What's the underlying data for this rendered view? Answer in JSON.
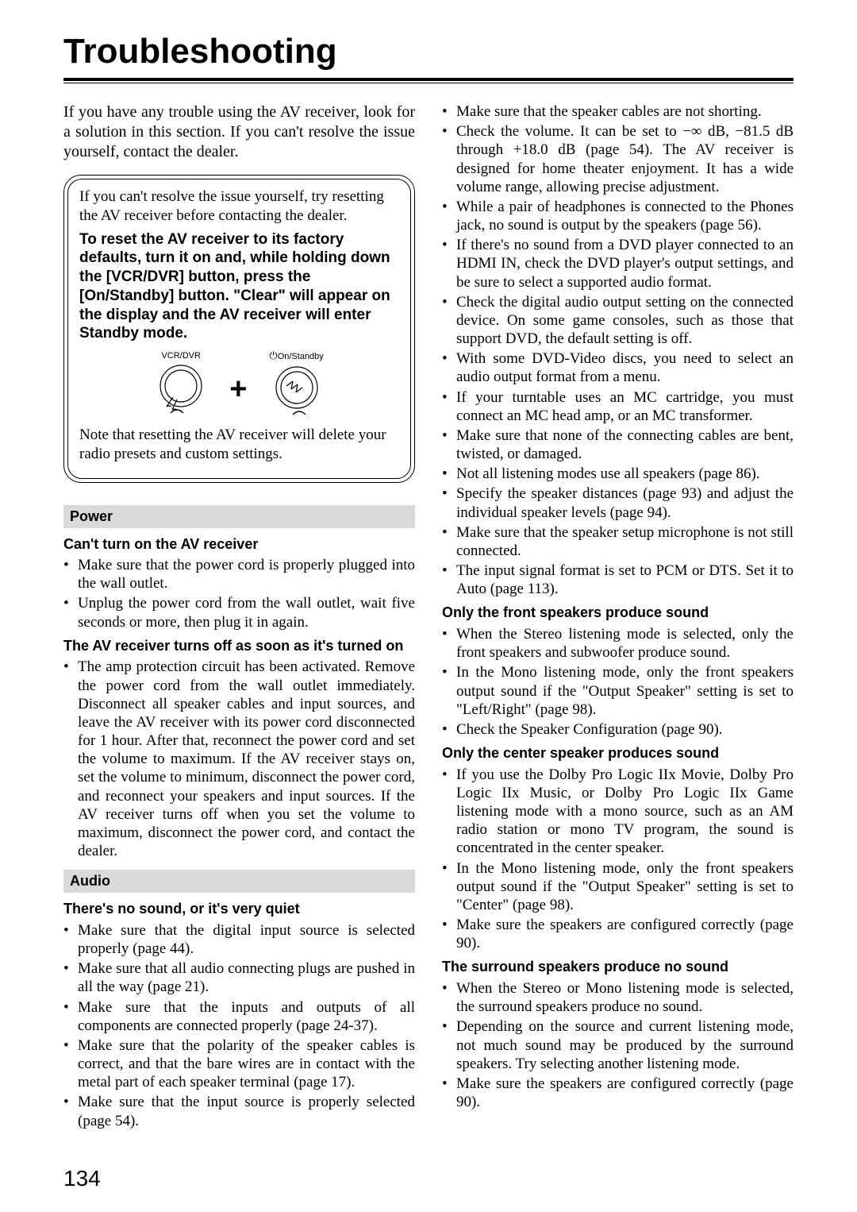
{
  "title": "Troubleshooting",
  "intro": "If you have any trouble using the AV receiver, look for a solution in this section. If you can't resolve the issue yourself, contact the dealer.",
  "resetbox": {
    "p1": "If you can't resolve the issue yourself, try resetting the AV receiver before contacting the dealer.",
    "bold": "To reset the AV receiver to its factory defaults, turn it on and, while holding down the [VCR/DVR] button, press the [On/Standby] button. \"Clear\" will appear on the display and the AV receiver will enter Standby mode.",
    "label_left": "VCR/DVR",
    "label_right": "On/Standby",
    "p2": "Note that resetting the AV receiver will delete your radio presets and custom settings."
  },
  "sections": [
    {
      "bar": "Power",
      "groups": [
        {
          "head": "Can't turn on the AV receiver",
          "items": [
            "Make sure that the power cord is properly plugged into the wall outlet.",
            "Unplug the power cord from the wall outlet, wait five seconds or more, then plug it in again."
          ]
        },
        {
          "head": "The AV receiver turns off as soon as it's turned on",
          "items": [
            "The amp protection circuit has been activated. Remove the power cord from the wall outlet immediately. Disconnect all speaker cables and input sources, and leave the AV receiver with its power cord disconnected for 1 hour. After that, reconnect the power cord and set the volume to maximum. If the AV receiver stays on, set the volume to minimum, disconnect the power cord, and reconnect your speakers and input sources. If the AV receiver turns off when you set the volume to maximum, disconnect the power cord, and contact the dealer."
          ]
        }
      ]
    },
    {
      "bar": "Audio",
      "groups": [
        {
          "head": "There's no sound, or it's very quiet",
          "items": [
            "Make sure that the digital input source is selected properly (page 44).",
            "Make sure that all audio connecting plugs are pushed in all the way (page 21).",
            "Make sure that the inputs and outputs of all components are connected properly (page 24-37).",
            "Make sure that the polarity of the speaker cables is correct, and that the bare wires are in contact with the metal part of each speaker terminal (page 17).",
            "Make sure that the input source is properly selected (page 54).",
            "Make sure that the speaker cables are not shorting.",
            "Check the volume. It can be set to −∞ dB, −81.5 dB through +18.0 dB (page 54). The AV receiver is designed for home theater enjoyment. It has a wide volume range, allowing precise adjustment.",
            "While a pair of headphones is connected to the Phones jack, no sound is output by the speakers (page 56).",
            "If there's no sound from a DVD player connected to an HDMI IN, check the DVD player's output settings, and be sure to select a supported audio format.",
            "Check the digital audio output setting on the connected device. On some game consoles, such as those that support DVD, the default setting is off.",
            "With some DVD-Video discs, you need to select an audio output format from a menu.",
            "If your turntable uses an MC cartridge, you must connect an MC head amp, or an MC transformer.",
            "Make sure that none of the connecting cables are bent, twisted, or damaged.",
            "Not all listening modes use all speakers (page 86).",
            "Specify the speaker distances (page 93) and adjust the individual speaker levels (page 94).",
            "Make sure that the speaker setup microphone is not still connected.",
            "The input signal format is set to PCM or DTS. Set it to Auto (page 113)."
          ]
        },
        {
          "head": "Only the front speakers produce sound",
          "items": [
            "When the Stereo listening mode is selected, only the front speakers and subwoofer produce sound.",
            "In the Mono listening mode, only the front speakers output sound if the \"Output Speaker\" setting is set to \"Left/Right\" (page 98).",
            "Check the Speaker Configuration (page 90)."
          ]
        },
        {
          "head": "Only the center speaker produces sound",
          "items": [
            "If you use the Dolby Pro Logic IIx Movie, Dolby Pro Logic IIx Music, or Dolby Pro Logic IIx Game listening mode with a mono source, such as an AM radio station or mono TV program, the sound is concentrated in the center speaker.",
            "In the Mono listening mode, only the front speakers output sound if the \"Output Speaker\" setting is set to \"Center\" (page 98).",
            "Make sure the speakers are configured correctly (page 90)."
          ]
        },
        {
          "head": "The surround speakers produce no sound",
          "items": [
            "When the Stereo or Mono listening mode is selected, the surround speakers produce no sound.",
            "Depending on the source and current listening mode, not much sound may be produced by the surround speakers. Try selecting another listening mode.",
            "Make sure the speakers are configured correctly (page 90)."
          ]
        }
      ]
    }
  ],
  "pagenum": "134"
}
